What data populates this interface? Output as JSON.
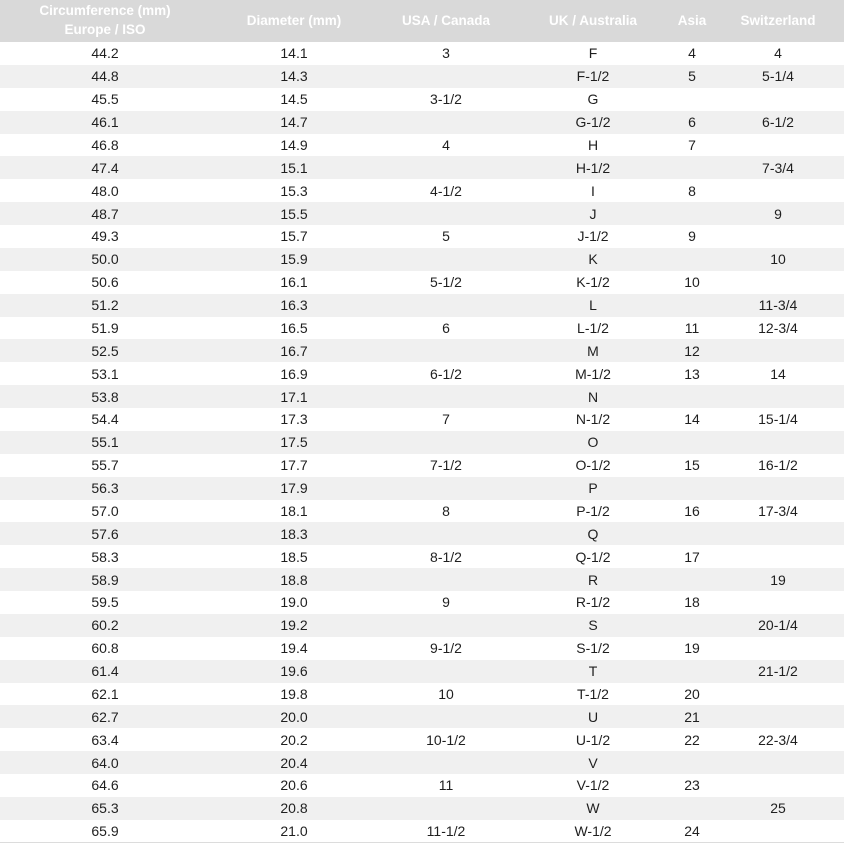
{
  "colors": {
    "header_bg": "#d9d9d9",
    "header_text": "#ffffff",
    "row_bg": "#ffffff",
    "stripe_bg": "#f0f0f0",
    "body_text": "#1f1f1f",
    "bottom_border": "#dcdcdc"
  },
  "table": {
    "column_keys": [
      "circumference",
      "diameter",
      "usa",
      "uk",
      "asia",
      "switzerland"
    ],
    "header": {
      "circumference_line1": "Circumference (mm)",
      "circumference_line2": "Europe / ISO",
      "diameter": "Diameter (mm)",
      "usa": "USA / Canada",
      "uk": "UK / Australia",
      "asia": "Asia",
      "switzerland": "Switzerland"
    }
  },
  "chart_data": {
    "type": "table",
    "title": "Ring size conversion table",
    "columns": [
      "Circumference (mm) Europe / ISO",
      "Diameter (mm)",
      "USA / Canada",
      "UK / Australia",
      "Asia",
      "Switzerland"
    ],
    "rows": [
      [
        "44.2",
        "14.1",
        "3",
        "F",
        "4",
        "4"
      ],
      [
        "44.8",
        "14.3",
        "",
        "F-1/2",
        "5",
        "5-1/4"
      ],
      [
        "45.5",
        "14.5",
        "3-1/2",
        "G",
        "",
        ""
      ],
      [
        "46.1",
        "14.7",
        "",
        "G-1/2",
        "6",
        "6-1/2"
      ],
      [
        "46.8",
        "14.9",
        "4",
        "H",
        "7",
        ""
      ],
      [
        "47.4",
        "15.1",
        "",
        "H-1/2",
        "",
        "7-3/4"
      ],
      [
        "48.0",
        "15.3",
        "4-1/2",
        "I",
        "8",
        ""
      ],
      [
        "48.7",
        "15.5",
        "",
        "J",
        "",
        "9"
      ],
      [
        "49.3",
        "15.7",
        "5",
        "J-1/2",
        "9",
        ""
      ],
      [
        "50.0",
        "15.9",
        "",
        "K",
        "",
        "10"
      ],
      [
        "50.6",
        "16.1",
        "5-1/2",
        "K-1/2",
        "10",
        ""
      ],
      [
        "51.2",
        "16.3",
        "",
        "L",
        "",
        "11-3/4"
      ],
      [
        "51.9",
        "16.5",
        "6",
        "L-1/2",
        "11",
        "12-3/4"
      ],
      [
        "52.5",
        "16.7",
        "",
        "M",
        "12",
        ""
      ],
      [
        "53.1",
        "16.9",
        "6-1/2",
        "M-1/2",
        "13",
        "14"
      ],
      [
        "53.8",
        "17.1",
        "",
        "N",
        "",
        ""
      ],
      [
        "54.4",
        "17.3",
        "7",
        "N-1/2",
        "14",
        "15-1/4"
      ],
      [
        "55.1",
        "17.5",
        "",
        "O",
        "",
        ""
      ],
      [
        "55.7",
        "17.7",
        "7-1/2",
        "O-1/2",
        "15",
        "16-1/2"
      ],
      [
        "56.3",
        "17.9",
        "",
        "P",
        "",
        ""
      ],
      [
        "57.0",
        "18.1",
        "8",
        "P-1/2",
        "16",
        "17-3/4"
      ],
      [
        "57.6",
        "18.3",
        "",
        "Q",
        "",
        ""
      ],
      [
        "58.3",
        "18.5",
        "8-1/2",
        "Q-1/2",
        "17",
        ""
      ],
      [
        "58.9",
        "18.8",
        "",
        "R",
        "",
        "19"
      ],
      [
        "59.5",
        "19.0",
        "9",
        "R-1/2",
        "18",
        ""
      ],
      [
        "60.2",
        "19.2",
        "",
        "S",
        "",
        "20-1/4"
      ],
      [
        "60.8",
        "19.4",
        "9-1/2",
        "S-1/2",
        "19",
        ""
      ],
      [
        "61.4",
        "19.6",
        "",
        "T",
        "",
        "21-1/2"
      ],
      [
        "62.1",
        "19.8",
        "10",
        "T-1/2",
        "20",
        ""
      ],
      [
        "62.7",
        "20.0",
        "",
        "U",
        "21",
        ""
      ],
      [
        "63.4",
        "20.2",
        "10-1/2",
        "U-1/2",
        "22",
        "22-3/4"
      ],
      [
        "64.0",
        "20.4",
        "",
        "V",
        "",
        ""
      ],
      [
        "64.6",
        "20.6",
        "11",
        "V-1/2",
        "23",
        ""
      ],
      [
        "65.3",
        "20.8",
        "",
        "W",
        "",
        "25"
      ],
      [
        "65.9",
        "21.0",
        "11-1/2",
        "W-1/2",
        "24",
        ""
      ]
    ]
  }
}
